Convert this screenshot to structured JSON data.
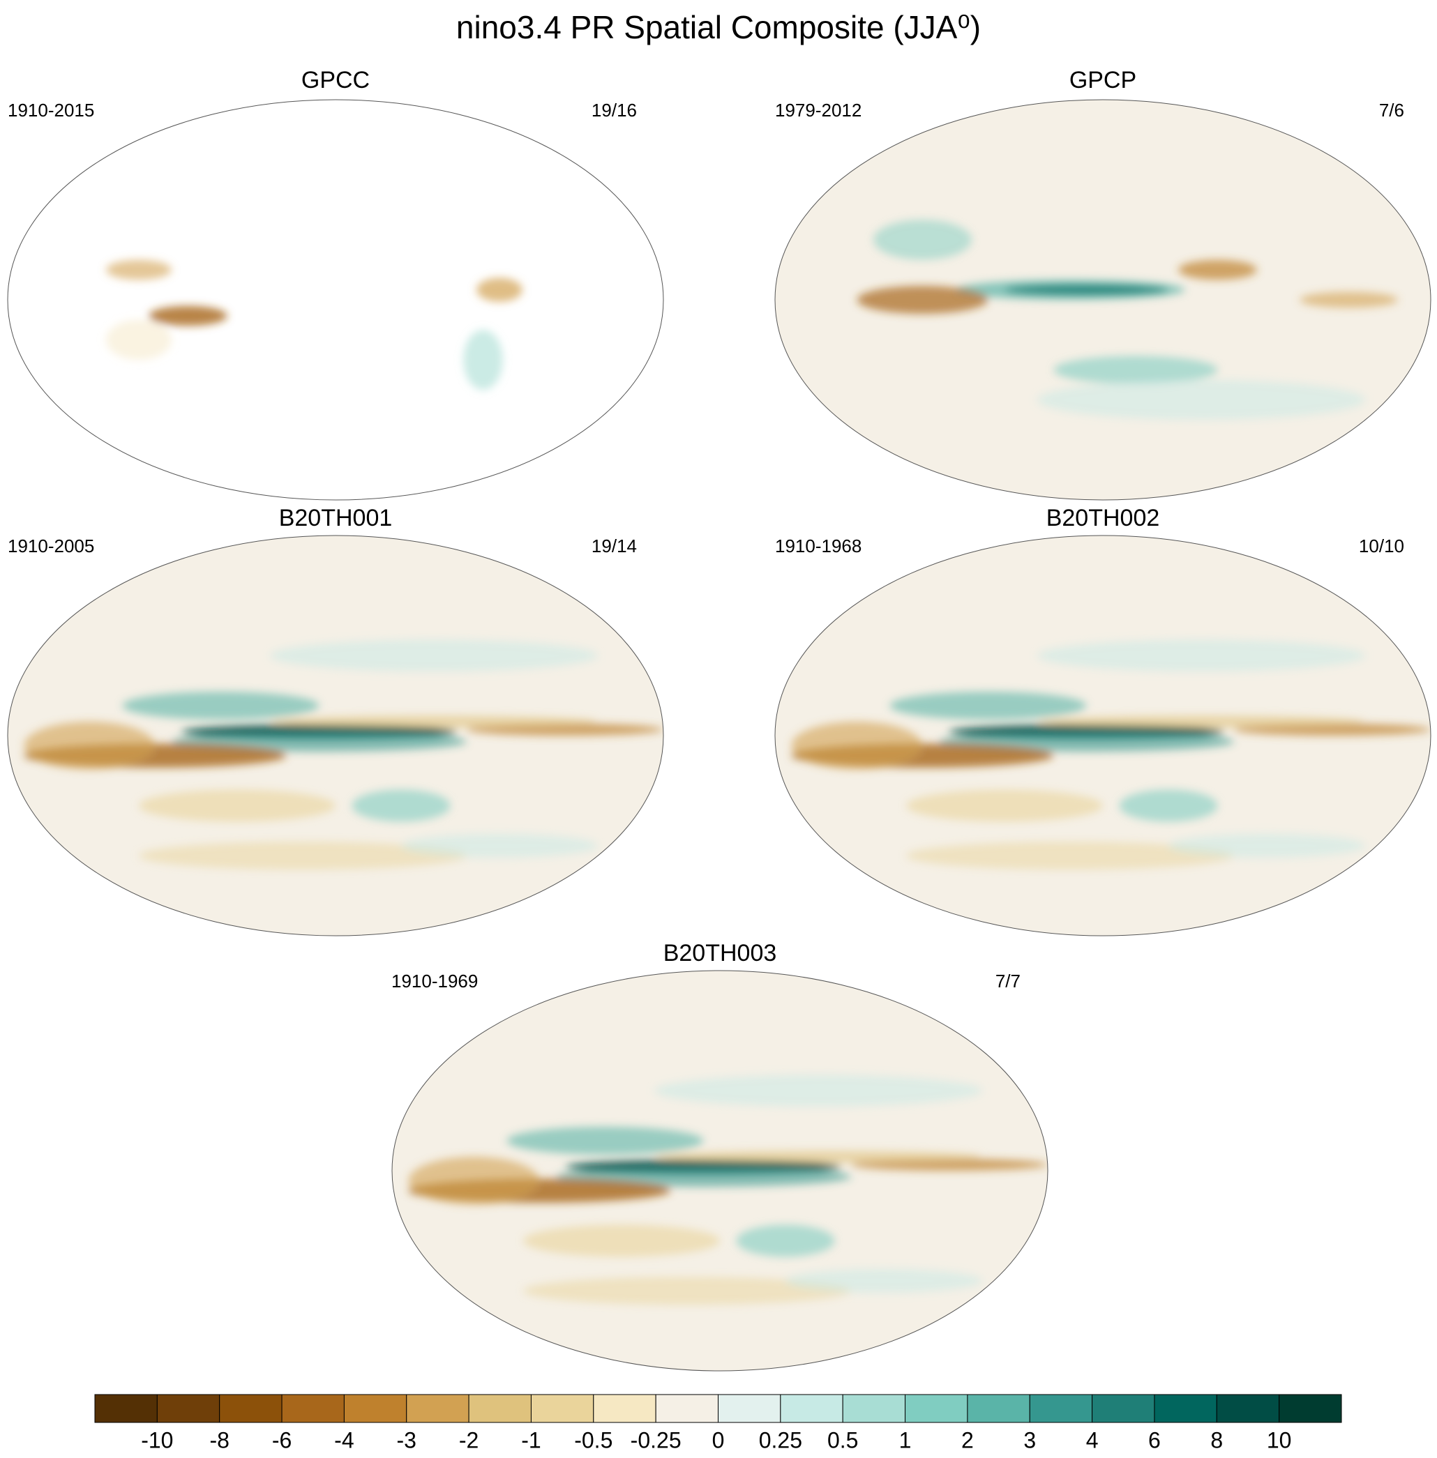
{
  "title": "nino3.4 PR Spatial Composite (JJA⁰)",
  "panels": [
    {
      "name": "GPCC",
      "period": "1910-2015",
      "count": "19/16"
    },
    {
      "name": "GPCP",
      "period": "1979-2012",
      "count": "7/6"
    },
    {
      "name": "B20TH001",
      "period": "1910-2005",
      "count": "19/14"
    },
    {
      "name": "B20TH002",
      "period": "1910-1968",
      "count": "10/10"
    },
    {
      "name": "B20TH003",
      "period": "1910-1969",
      "count": "7/7"
    }
  ],
  "colorbar": {
    "labels": [
      -10,
      -8,
      -6,
      -4,
      -3,
      -2,
      -1,
      -0.5,
      -0.25,
      0,
      0.25,
      0.5,
      1,
      2,
      3,
      4,
      6,
      8,
      10
    ],
    "colors": [
      "#543005",
      "#6f3f09",
      "#8c510a",
      "#a8671b",
      "#bf812d",
      "#d2a152",
      "#dfc27d",
      "#ead49b",
      "#f6e8c3",
      "#f5f0e6",
      "#e3f1ee",
      "#c7eae5",
      "#a8ddd4",
      "#80cdc1",
      "#5ab4a8",
      "#35978f",
      "#1f7f77",
      "#01665e",
      "#014d45",
      "#003c30"
    ]
  }
}
